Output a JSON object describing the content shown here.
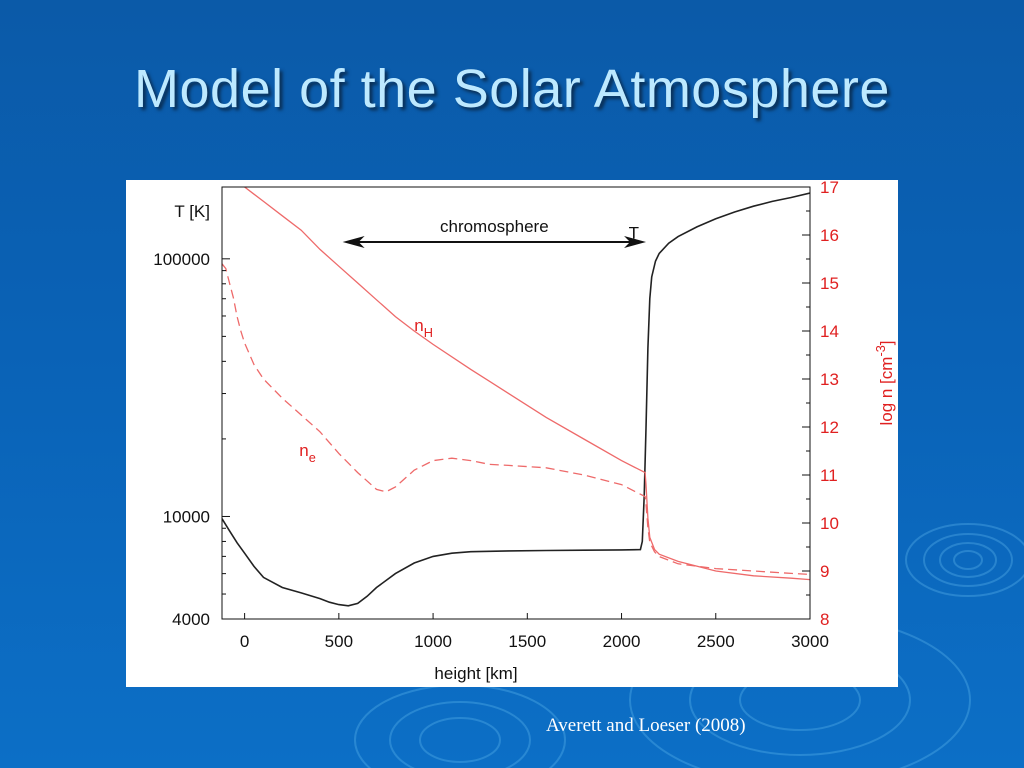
{
  "slide": {
    "title": "Model of the Solar Atmosphere",
    "citation": "Averett and Loeser (2008)"
  },
  "colors": {
    "background": "#0a62b6",
    "title": "#bde9ff",
    "temperature_curve": "#222222",
    "density_curves": "#ee6a6a",
    "density_axis": "#e02020",
    "arrow": "#111111"
  },
  "chart_data": {
    "type": "line",
    "title": "",
    "xlabel": "height [km]",
    "xlim": [
      -120,
      3000
    ],
    "x_ticks": [
      0,
      500,
      1000,
      1500,
      2000,
      2500,
      3000
    ],
    "y_left": {
      "label": "T [K]",
      "scale": "log",
      "lim": [
        4000,
        190000
      ],
      "ticks": [
        4000,
        10000,
        100000
      ],
      "tick_labels": [
        "4000",
        "10000",
        "100000"
      ]
    },
    "y_right": {
      "label_base": "log n [cm",
      "label_exp": "-3",
      "label_close": "]",
      "scale": "linear",
      "lim": [
        8,
        17
      ],
      "ticks": [
        8,
        9,
        10,
        11,
        12,
        13,
        14,
        15,
        16,
        17
      ]
    },
    "grid": false,
    "series": [
      {
        "name": "T",
        "axis": "left",
        "style": "solid",
        "x": [
          -120,
          -80,
          -40,
          0,
          50,
          100,
          200,
          300,
          400,
          450,
          500,
          550,
          600,
          650,
          700,
          800,
          900,
          1000,
          1100,
          1200,
          1400,
          1600,
          1800,
          2000,
          2100,
          2110,
          2120,
          2130,
          2140,
          2150,
          2160,
          2180,
          2200,
          2250,
          2300,
          2400,
          2500,
          2600,
          2700,
          2800,
          2900,
          3000
        ],
        "y": [
          9800,
          8800,
          7900,
          7200,
          6400,
          5800,
          5300,
          5050,
          4800,
          4650,
          4550,
          4500,
          4600,
          4900,
          5300,
          6000,
          6600,
          7000,
          7200,
          7300,
          7350,
          7380,
          7400,
          7420,
          7440,
          8000,
          12000,
          22000,
          45000,
          70000,
          85000,
          98000,
          105000,
          115000,
          122000,
          133000,
          143000,
          152000,
          160000,
          167000,
          173000,
          180000
        ]
      },
      {
        "name_base": "n",
        "name_sub": "H",
        "axis": "right",
        "style": "solid",
        "x": [
          -120,
          0,
          50,
          100,
          200,
          300,
          400,
          500,
          600,
          700,
          800,
          900,
          1000,
          1200,
          1400,
          1600,
          1800,
          2000,
          2100,
          2125,
          2130,
          2140,
          2150,
          2175,
          2200,
          2300,
          2500,
          2700,
          2900,
          3000
        ],
        "y": [
          17.25,
          17.0,
          16.85,
          16.7,
          16.4,
          16.1,
          15.7,
          15.35,
          15.0,
          14.65,
          14.3,
          14.0,
          13.72,
          13.2,
          12.7,
          12.2,
          11.75,
          11.3,
          11.1,
          11.05,
          10.8,
          10.1,
          9.7,
          9.45,
          9.35,
          9.2,
          9.0,
          8.9,
          8.85,
          8.82
        ]
      },
      {
        "name_base": "n",
        "name_sub": "e",
        "axis": "right",
        "style": "dashed",
        "x": [
          -120,
          -100,
          -80,
          -60,
          -40,
          -20,
          0,
          50,
          100,
          200,
          300,
          400,
          500,
          600,
          700,
          750,
          800,
          900,
          1000,
          1100,
          1200,
          1300,
          1400,
          1600,
          1800,
          2000,
          2100,
          2125,
          2130,
          2140,
          2150,
          2175,
          2200,
          2300,
          2500,
          2700,
          2900,
          3000
        ],
        "y": [
          15.4,
          15.3,
          15.0,
          14.7,
          14.3,
          14.0,
          13.75,
          13.3,
          13.0,
          12.6,
          12.25,
          11.9,
          11.45,
          11.05,
          10.7,
          10.65,
          10.75,
          11.1,
          11.3,
          11.35,
          11.3,
          11.22,
          11.2,
          11.15,
          11.0,
          10.8,
          10.6,
          10.55,
          10.4,
          9.9,
          9.6,
          9.4,
          9.3,
          9.15,
          9.05,
          9.0,
          8.95,
          8.93
        ]
      }
    ],
    "annotations": [
      {
        "text": "chromosphere",
        "type": "double-arrow",
        "x_start": 520,
        "x_end": 2130
      },
      {
        "text": "T",
        "x": 2065,
        "y_left": 120000
      },
      {
        "text_base": "n",
        "text_sub": "H",
        "x": 900,
        "y_right": 14.0
      },
      {
        "text_base": "n",
        "text_sub": "e",
        "x": 290,
        "y_right": 11.4
      }
    ]
  }
}
